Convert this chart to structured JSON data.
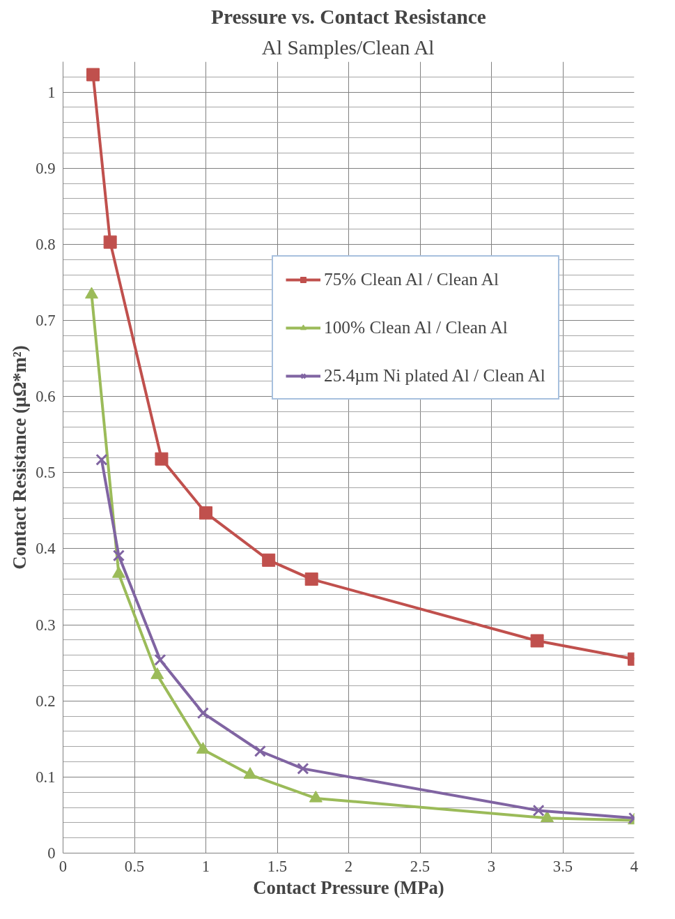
{
  "chart_data": {
    "type": "line",
    "title": "Pressure vs. Contact Resistance",
    "subtitle": "Al Samples/Clean Al",
    "xlabel": "Contact Pressure (MPa)",
    "ylabel": "Contact Resistance (μΩ*m²)",
    "xlim": [
      0,
      4
    ],
    "ylim": [
      0,
      1.04
    ],
    "xticks": [
      0,
      0.5,
      1,
      1.5,
      2,
      2.5,
      3,
      3.5,
      4
    ],
    "yticks": [
      0,
      0.1,
      0.2,
      0.3,
      0.4,
      0.5,
      0.6,
      0.7,
      0.8,
      0.9,
      1
    ],
    "grid": true,
    "legend": "top right",
    "line_style": "solid",
    "series": [
      {
        "name": "75% Clean Al / Clean Al",
        "color": "#c0504d",
        "marker": "square",
        "x": [
          0.21,
          0.33,
          0.69,
          1.0,
          1.44,
          1.74,
          3.32,
          4.0
        ],
        "values": [
          1.023,
          0.803,
          0.518,
          0.447,
          0.385,
          0.36,
          0.279,
          0.255
        ]
      },
      {
        "name": "100% Clean Al / Clean Al",
        "color": "#9bbb59",
        "marker": "triangle",
        "x": [
          0.2,
          0.39,
          0.66,
          0.98,
          1.31,
          1.77,
          3.39,
          4.0
        ],
        "values": [
          0.734,
          0.367,
          0.234,
          0.136,
          0.103,
          0.072,
          0.046,
          0.043
        ]
      },
      {
        "name": "25.4µm Ni plated Al / Clean Al",
        "color": "#8064a2",
        "marker": "cross",
        "x": [
          0.27,
          0.39,
          0.68,
          0.98,
          1.38,
          1.68,
          3.33,
          4.0
        ],
        "values": [
          0.517,
          0.391,
          0.254,
          0.184,
          0.134,
          0.111,
          0.056,
          0.046
        ]
      }
    ]
  }
}
